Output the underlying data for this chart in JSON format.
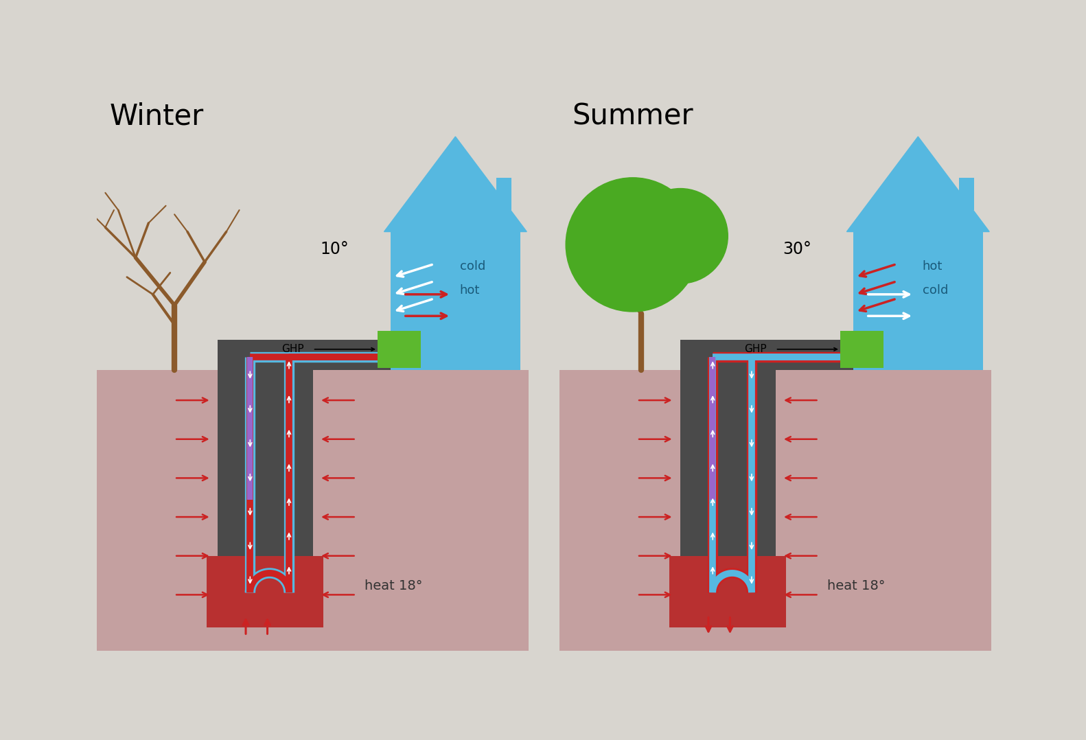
{
  "bg_color": "#d8d5cf",
  "panel_bg": "#ffffff",
  "ground_color": "#c4a0a0",
  "hot_zone_color": "#b83030",
  "duct_dark": "#4a4a4a",
  "house_color": "#56b8e0",
  "house_text_color": "#1a5a7a",
  "ghp_color": "#5cb82e",
  "tree_trunk_color": "#8B5A2B",
  "tree_leaf_summer": "#4aaa22",
  "pipe_blue": "#56b8e0",
  "pipe_red": "#cc2222",
  "pipe_purple": "#9966cc",
  "arrow_red": "#cc2222",
  "title_winter": "Winter",
  "title_summer": "Summer",
  "temp_winter": "10°",
  "temp_summer": "30°",
  "heat_label": "heat 18°",
  "label_ghp": "GHP",
  "label_cold_w": "cold",
  "label_hot_w": "hot",
  "label_hot_s": "hot",
  "label_cold_s": "cold"
}
